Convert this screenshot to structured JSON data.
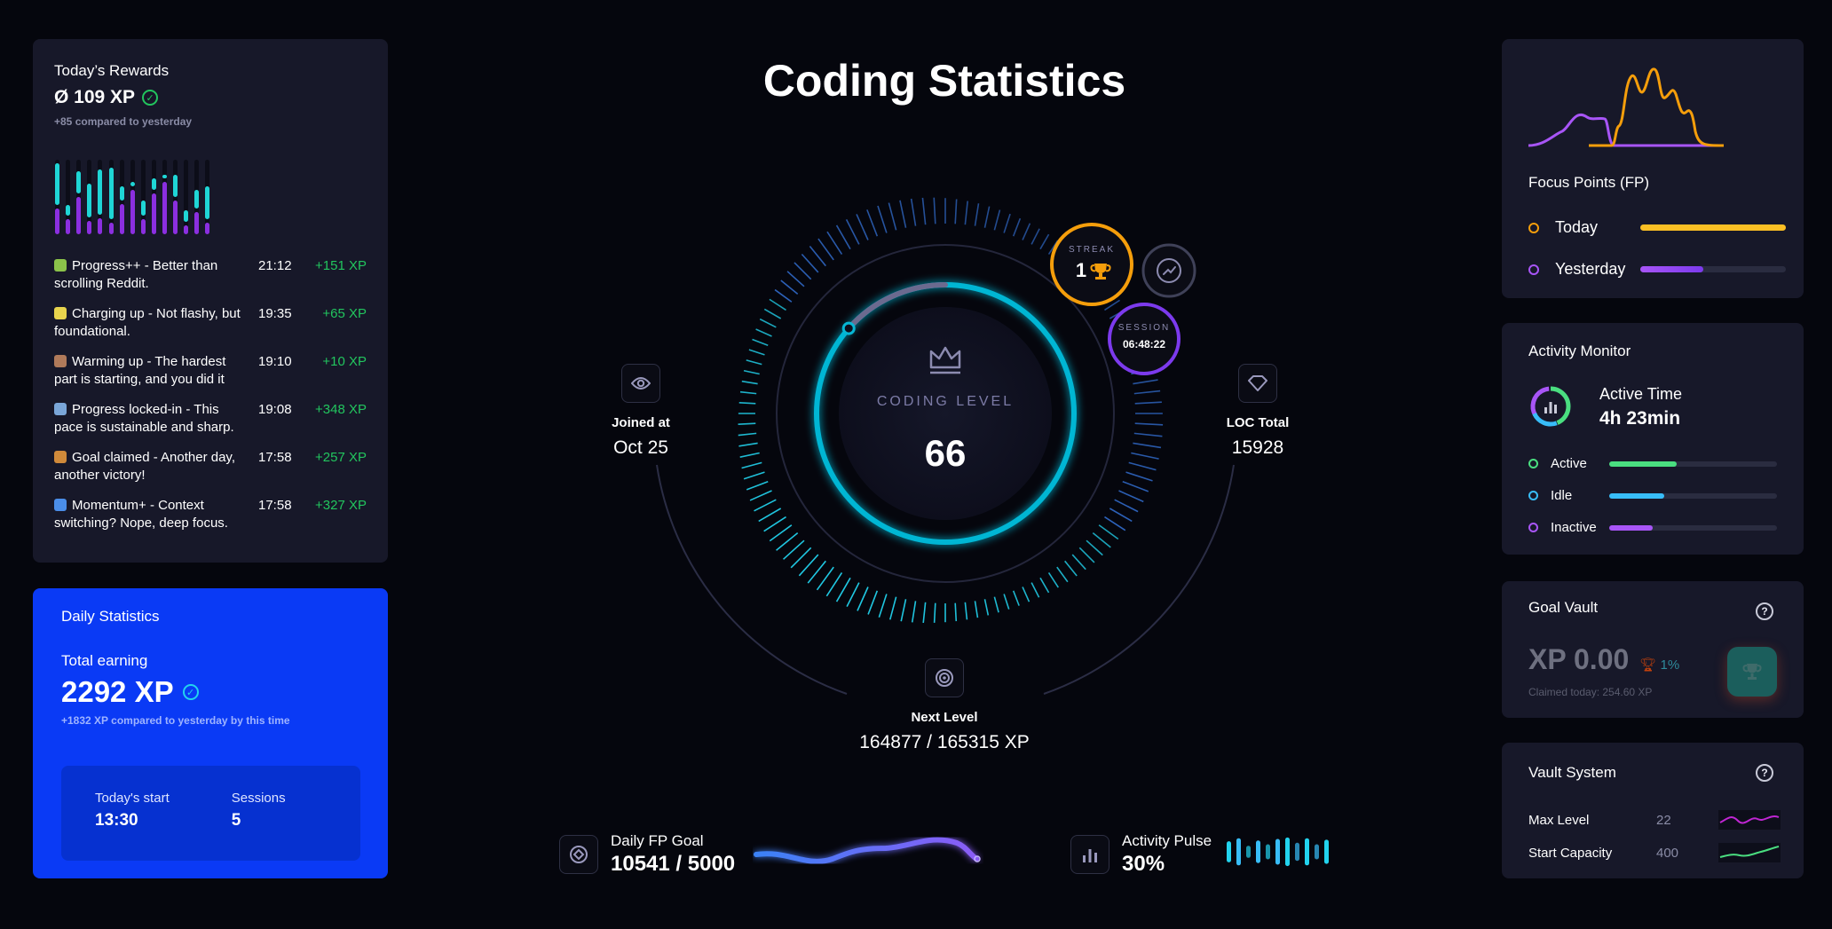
{
  "page_title": "Coding Statistics",
  "rewards": {
    "title": "Today’s Rewards",
    "xp": "Ø 109 XP",
    "compare": "+85 compared to yesterday",
    "bars": [
      [
        0.35,
        0.55
      ],
      [
        0.2,
        0.15
      ],
      [
        0.5,
        0.3
      ],
      [
        0.18,
        0.45
      ],
      [
        0.22,
        0.6
      ],
      [
        0.15,
        0.7
      ],
      [
        0.4,
        0.2
      ],
      [
        0.6,
        0.05
      ],
      [
        0.2,
        0.2
      ],
      [
        0.55,
        0.15
      ],
      [
        0.7,
        0.05
      ],
      [
        0.45,
        0.3
      ],
      [
        0.12,
        0.15
      ],
      [
        0.3,
        0.25
      ],
      [
        0.15,
        0.45
      ]
    ],
    "log": [
      {
        "icon": "puzzle-icon",
        "color": "#8bc34a",
        "text": "Progress++ - Better than scrolling Reddit.",
        "time": "21:12",
        "gain": "+151 XP"
      },
      {
        "icon": "battery-icon",
        "color": "#e8d44d",
        "text": "Charging up - Not flashy, but foundational.",
        "time": "19:35",
        "gain": "+65 XP"
      },
      {
        "icon": "coffee-icon",
        "color": "#b07a5a",
        "text": "Warming up - The hardest part is starting, and you did it",
        "time": "19:10",
        "gain": "+10 XP"
      },
      {
        "icon": "chart-up-icon",
        "color": "#7aa6d8",
        "text": "Progress locked-in - This pace is sustainable and sharp.",
        "time": "19:08",
        "gain": "+348 XP"
      },
      {
        "icon": "party-icon",
        "color": "#d08a3a",
        "text": "Goal claimed - Another day, another victory!",
        "time": "17:58",
        "gain": "+257 XP"
      },
      {
        "icon": "refresh-icon",
        "color": "#4a8de8",
        "text": "Momentum+ - Context switching? Nope, deep focus.",
        "time": "17:58",
        "gain": "+327 XP"
      }
    ]
  },
  "daily": {
    "title": "Daily Statistics",
    "total_label": "Total earning",
    "total_value": "2292 XP",
    "compare": "+1832 XP compared to yesterday by this time",
    "start_label": "Today's start",
    "start_value": "13:30",
    "sessions_label": "Sessions",
    "sessions_value": "5"
  },
  "gauge": {
    "label": "CODING LEVEL",
    "level": "66",
    "progress": 0.97,
    "streak_label": "STREAK",
    "streak_value": "1",
    "session_label": "SESSION",
    "session_value": "06:48:22"
  },
  "joined": {
    "label": "Joined at",
    "value": "Oct 25"
  },
  "loc": {
    "label": "LOC Total",
    "value": "15928"
  },
  "next_level": {
    "label": "Next Level",
    "value": "164877 / 165315 XP"
  },
  "fp_goal": {
    "label": "Daily FP Goal",
    "value": "10541 / 5000"
  },
  "pulse": {
    "label": "Activity Pulse",
    "value": "30%"
  },
  "focus": {
    "title": "Focus Points (FP)",
    "today_label": "Today",
    "today_fill": 1.0,
    "yesterday_label": "Yesterday",
    "yesterday_fill": 0.43,
    "today_color": "#fbbf24",
    "yesterday_color": "#a855f7"
  },
  "activity": {
    "title": "Activity Monitor",
    "active_time_label": "Active Time",
    "active_time_value": "4h 23min",
    "rows": [
      {
        "label": "Active",
        "fill": 0.4,
        "color": "#4ade80"
      },
      {
        "label": "Idle",
        "fill": 0.33,
        "color": "#38bdf8"
      },
      {
        "label": "Inactive",
        "fill": 0.26,
        "color": "#a855f7"
      }
    ]
  },
  "goal_vault": {
    "title": "Goal Vault",
    "xp": "XP 0.00",
    "pct": "1%",
    "claimed": "Claimed today: 254.60 XP"
  },
  "vault_system": {
    "title": "Vault System",
    "max_level_label": "Max Level",
    "max_level_value": "22",
    "start_capacity_label": "Start Capacity",
    "start_capacity_value": "400"
  }
}
